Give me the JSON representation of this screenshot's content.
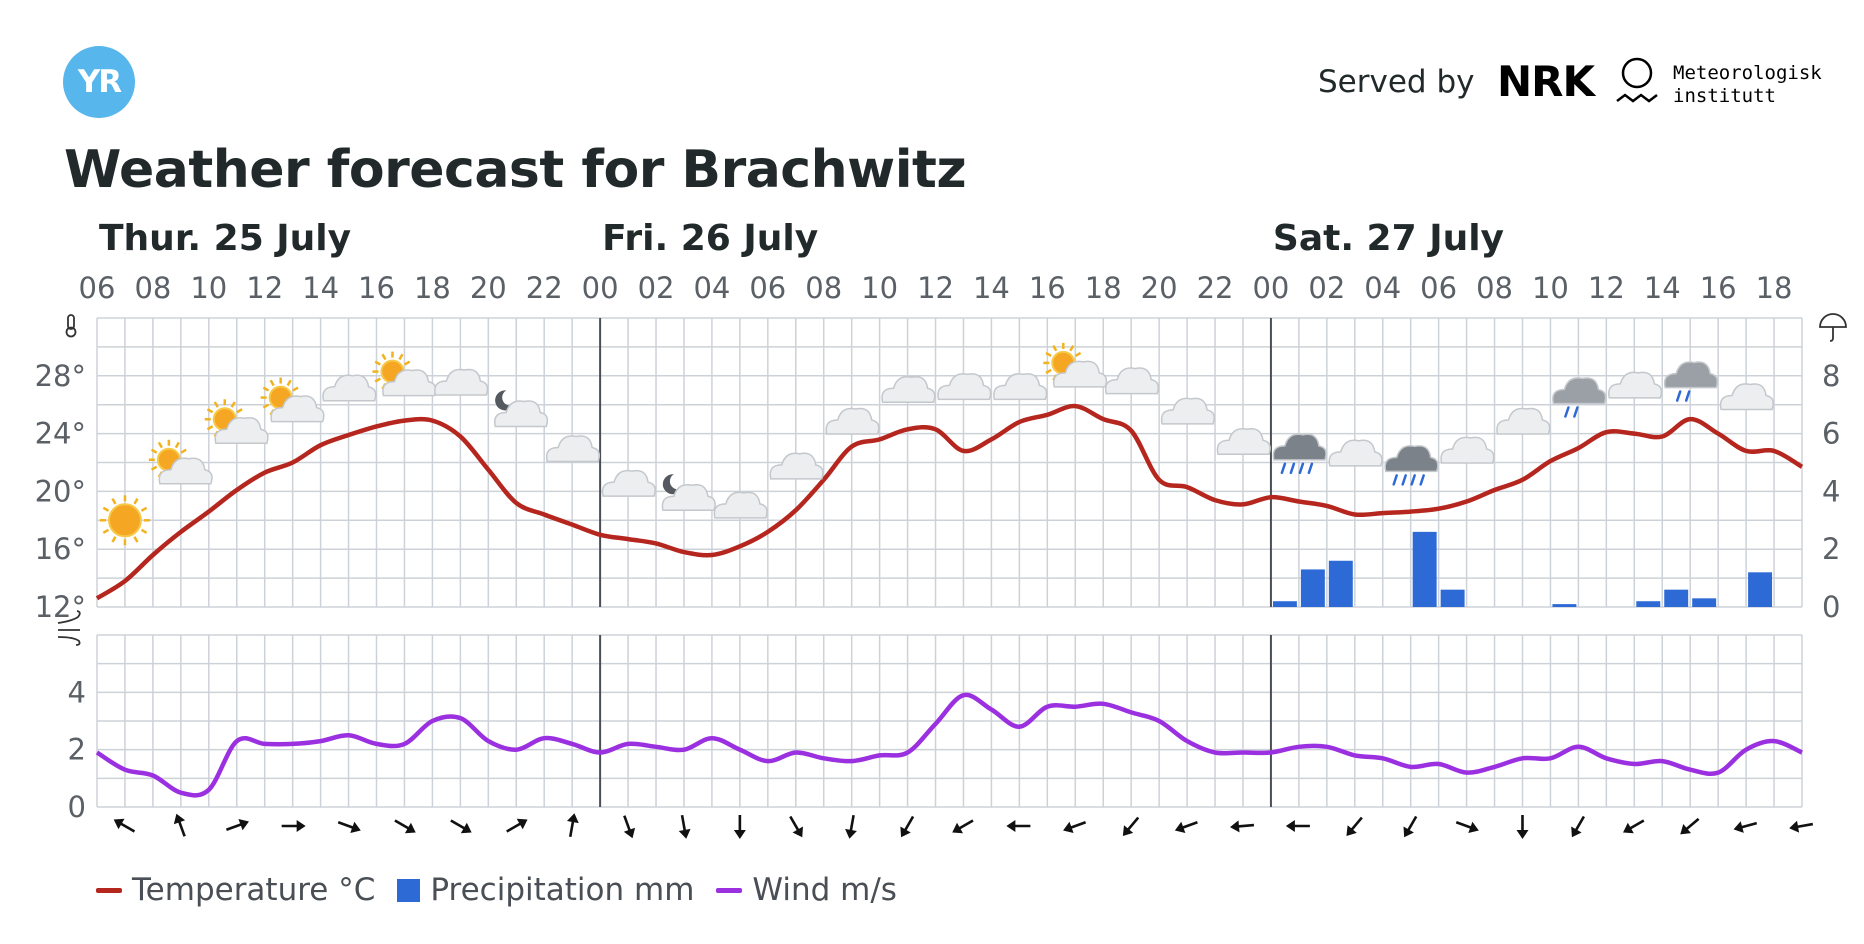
{
  "header": {
    "logo_text": "YR",
    "served_by": "Served by",
    "nrk_text": "NRK",
    "met_line1": "Meteorologisk",
    "met_line2": "institutt"
  },
  "title": "Weather forecast for Brachwitz",
  "colors": {
    "temperature": "#b5261e",
    "precipitation": "#2d6ad6",
    "wind": "#9b30e0",
    "grid": "#cdd2d8",
    "day_divider": "#4a4f55",
    "logo": "#57b6ec"
  },
  "legend": {
    "temperature": "Temperature °C",
    "precipitation": "Precipitation mm",
    "wind": "Wind m/s"
  },
  "chart_data": {
    "type": "line",
    "title": "Weather forecast for Brachwitz",
    "days": [
      {
        "label": "Thur. 25 July",
        "start_hour": 6
      },
      {
        "label": "Fri. 26 July",
        "start_hour": 24
      },
      {
        "label": "Sat. 27 July",
        "start_hour": 48
      }
    ],
    "x_tick_labels": [
      "06",
      "08",
      "10",
      "12",
      "14",
      "16",
      "18",
      "20",
      "22",
      "00",
      "02",
      "04",
      "06",
      "08",
      "10",
      "12",
      "14",
      "16",
      "18",
      "20",
      "22",
      "00",
      "02",
      "04",
      "06",
      "08",
      "10",
      "12",
      "14",
      "16",
      "18"
    ],
    "x_range_hours": [
      6,
      67
    ],
    "temperature": {
      "name": "Temperature °C",
      "axis_labels": [
        "12°",
        "16°",
        "20°",
        "24°",
        "28°"
      ],
      "ylim": [
        12,
        32
      ],
      "hours": [
        6,
        7,
        8,
        9,
        10,
        11,
        12,
        13,
        14,
        15,
        16,
        17,
        18,
        19,
        20,
        21,
        22,
        23,
        24,
        25,
        26,
        27,
        28,
        29,
        30,
        31,
        32,
        33,
        34,
        35,
        36,
        37,
        38,
        39,
        40,
        41,
        42,
        43,
        44,
        45,
        46,
        47,
        48,
        49,
        50,
        51,
        52,
        53,
        54,
        55,
        56,
        57,
        58,
        59,
        60,
        61,
        62,
        63,
        64,
        65,
        66,
        67
      ],
      "values": [
        12.6,
        13.8,
        15.6,
        17.2,
        18.6,
        20.1,
        21.3,
        22.0,
        23.2,
        23.9,
        24.5,
        24.9,
        24.9,
        23.8,
        21.5,
        19.2,
        18.4,
        17.7,
        17.0,
        16.7,
        16.4,
        15.8,
        15.6,
        16.2,
        17.2,
        18.7,
        20.8,
        23.1,
        23.6,
        24.3,
        24.3,
        22.8,
        23.6,
        24.8,
        25.3,
        25.9,
        25.0,
        24.2,
        20.8,
        20.3,
        19.4,
        19.1,
        19.6,
        19.3,
        19.0,
        18.4,
        18.5,
        18.6,
        18.8,
        19.3,
        20.1,
        20.8,
        22.1,
        23.0,
        24.1,
        24.0,
        23.8,
        25.0,
        24.0,
        22.8,
        22.8,
        21.7
      ]
    },
    "precipitation": {
      "name": "Precipitation mm",
      "axis_labels": [
        "0",
        "2",
        "4",
        "6",
        "8"
      ],
      "ylim": [
        0,
        10
      ],
      "bars": [
        {
          "hour": 48,
          "value": 0.2
        },
        {
          "hour": 49,
          "value": 1.3
        },
        {
          "hour": 50,
          "value": 1.6
        },
        {
          "hour": 53,
          "value": 2.6
        },
        {
          "hour": 54,
          "value": 0.6
        },
        {
          "hour": 58,
          "value": 0.1
        },
        {
          "hour": 61,
          "value": 0.2
        },
        {
          "hour": 62,
          "value": 0.6
        },
        {
          "hour": 63,
          "value": 0.3
        },
        {
          "hour": 65,
          "value": 1.2
        }
      ]
    },
    "wind": {
      "name": "Wind m/s",
      "axis_labels": [
        "0",
        "2",
        "4"
      ],
      "ylim": [
        0,
        6
      ],
      "hours": [
        6,
        7,
        8,
        9,
        10,
        11,
        12,
        13,
        14,
        15,
        16,
        17,
        18,
        19,
        20,
        21,
        22,
        23,
        24,
        25,
        26,
        27,
        28,
        29,
        30,
        31,
        32,
        33,
        34,
        35,
        36,
        37,
        38,
        39,
        40,
        41,
        42,
        43,
        44,
        45,
        46,
        47,
        48,
        49,
        50,
        51,
        52,
        53,
        54,
        55,
        56,
        57,
        58,
        59,
        60,
        61,
        62,
        63,
        64,
        65,
        66,
        67
      ],
      "values": [
        1.9,
        1.3,
        1.1,
        0.5,
        0.6,
        2.3,
        2.2,
        2.2,
        2.3,
        2.5,
        2.2,
        2.2,
        3.0,
        3.1,
        2.3,
        2.0,
        2.4,
        2.2,
        1.9,
        2.2,
        2.1,
        2.0,
        2.4,
        2.0,
        1.6,
        1.9,
        1.7,
        1.6,
        1.8,
        1.9,
        2.9,
        3.9,
        3.4,
        2.8,
        3.5,
        3.5,
        3.6,
        3.3,
        3.0,
        2.3,
        1.9,
        1.9,
        1.9,
        2.1,
        2.1,
        1.8,
        1.7,
        1.4,
        1.5,
        1.2,
        1.4,
        1.7,
        1.7,
        2.1,
        1.7,
        1.5,
        1.6,
        1.3,
        1.2,
        2.0,
        2.3,
        1.9
      ]
    },
    "symbols": [
      {
        "hour": 7,
        "temp": 18.0,
        "icon": "sun-icon"
      },
      {
        "hour": 9,
        "temp": 21.5,
        "icon": "partly-cloudy-day-icon"
      },
      {
        "hour": 11,
        "temp": 24.3,
        "icon": "partly-cloudy-day-icon"
      },
      {
        "hour": 13,
        "temp": 25.8,
        "icon": "partly-cloudy-day-icon"
      },
      {
        "hour": 15,
        "temp": 27.1,
        "icon": "cloud-icon"
      },
      {
        "hour": 17,
        "temp": 27.6,
        "icon": "partly-cloudy-day-icon"
      },
      {
        "hour": 19,
        "temp": 27.5,
        "icon": "cloud-icon"
      },
      {
        "hour": 21,
        "temp": 25.6,
        "icon": "partly-cloudy-night-icon"
      },
      {
        "hour": 23,
        "temp": 22.9,
        "icon": "cloud-icon"
      },
      {
        "hour": 25,
        "temp": 20.5,
        "icon": "cloud-icon"
      },
      {
        "hour": 27,
        "temp": 19.8,
        "icon": "partly-cloudy-night-icon"
      },
      {
        "hour": 29,
        "temp": 19.0,
        "icon": "cloud-icon"
      },
      {
        "hour": 31,
        "temp": 21.7,
        "icon": "cloud-icon"
      },
      {
        "hour": 33,
        "temp": 24.8,
        "icon": "cloud-icon"
      },
      {
        "hour": 35,
        "temp": 27.0,
        "icon": "cloud-icon"
      },
      {
        "hour": 37,
        "temp": 27.2,
        "icon": "cloud-icon"
      },
      {
        "hour": 39,
        "temp": 27.2,
        "icon": "cloud-icon"
      },
      {
        "hour": 41,
        "temp": 28.2,
        "icon": "partly-cloudy-day-icon"
      },
      {
        "hour": 43,
        "temp": 27.6,
        "icon": "cloud-icon"
      },
      {
        "hour": 45,
        "temp": 25.5,
        "icon": "cloud-icon"
      },
      {
        "hour": 47,
        "temp": 23.4,
        "icon": "cloud-icon"
      },
      {
        "hour": 49,
        "temp": 22.6,
        "icon": "rain-icon"
      },
      {
        "hour": 51,
        "temp": 22.6,
        "icon": "cloud-icon"
      },
      {
        "hour": 53,
        "temp": 21.8,
        "icon": "rain-icon"
      },
      {
        "hour": 55,
        "temp": 22.8,
        "icon": "cloud-icon"
      },
      {
        "hour": 57,
        "temp": 24.8,
        "icon": "cloud-icon"
      },
      {
        "hour": 59,
        "temp": 26.5,
        "icon": "light-rain-icon"
      },
      {
        "hour": 61,
        "temp": 27.3,
        "icon": "cloud-icon"
      },
      {
        "hour": 63,
        "temp": 27.6,
        "icon": "light-rain-icon"
      },
      {
        "hour": 65,
        "temp": 26.5,
        "icon": "cloud-icon"
      }
    ],
    "wind_directions": {
      "hours": [
        7,
        9,
        11,
        13,
        15,
        17,
        19,
        21,
        23,
        25,
        27,
        29,
        31,
        33,
        35,
        37,
        39,
        41,
        43,
        45,
        47,
        49,
        51,
        53,
        55,
        57,
        59,
        61,
        63,
        65,
        67
      ],
      "degrees": [
        300,
        340,
        70,
        90,
        110,
        120,
        120,
        60,
        10,
        160,
        170,
        180,
        150,
        190,
        210,
        240,
        270,
        250,
        220,
        250,
        265,
        270,
        220,
        210,
        110,
        180,
        210,
        240,
        230,
        255,
        260
      ]
    },
    "grid": true,
    "legend_position": "bottom-left"
  }
}
